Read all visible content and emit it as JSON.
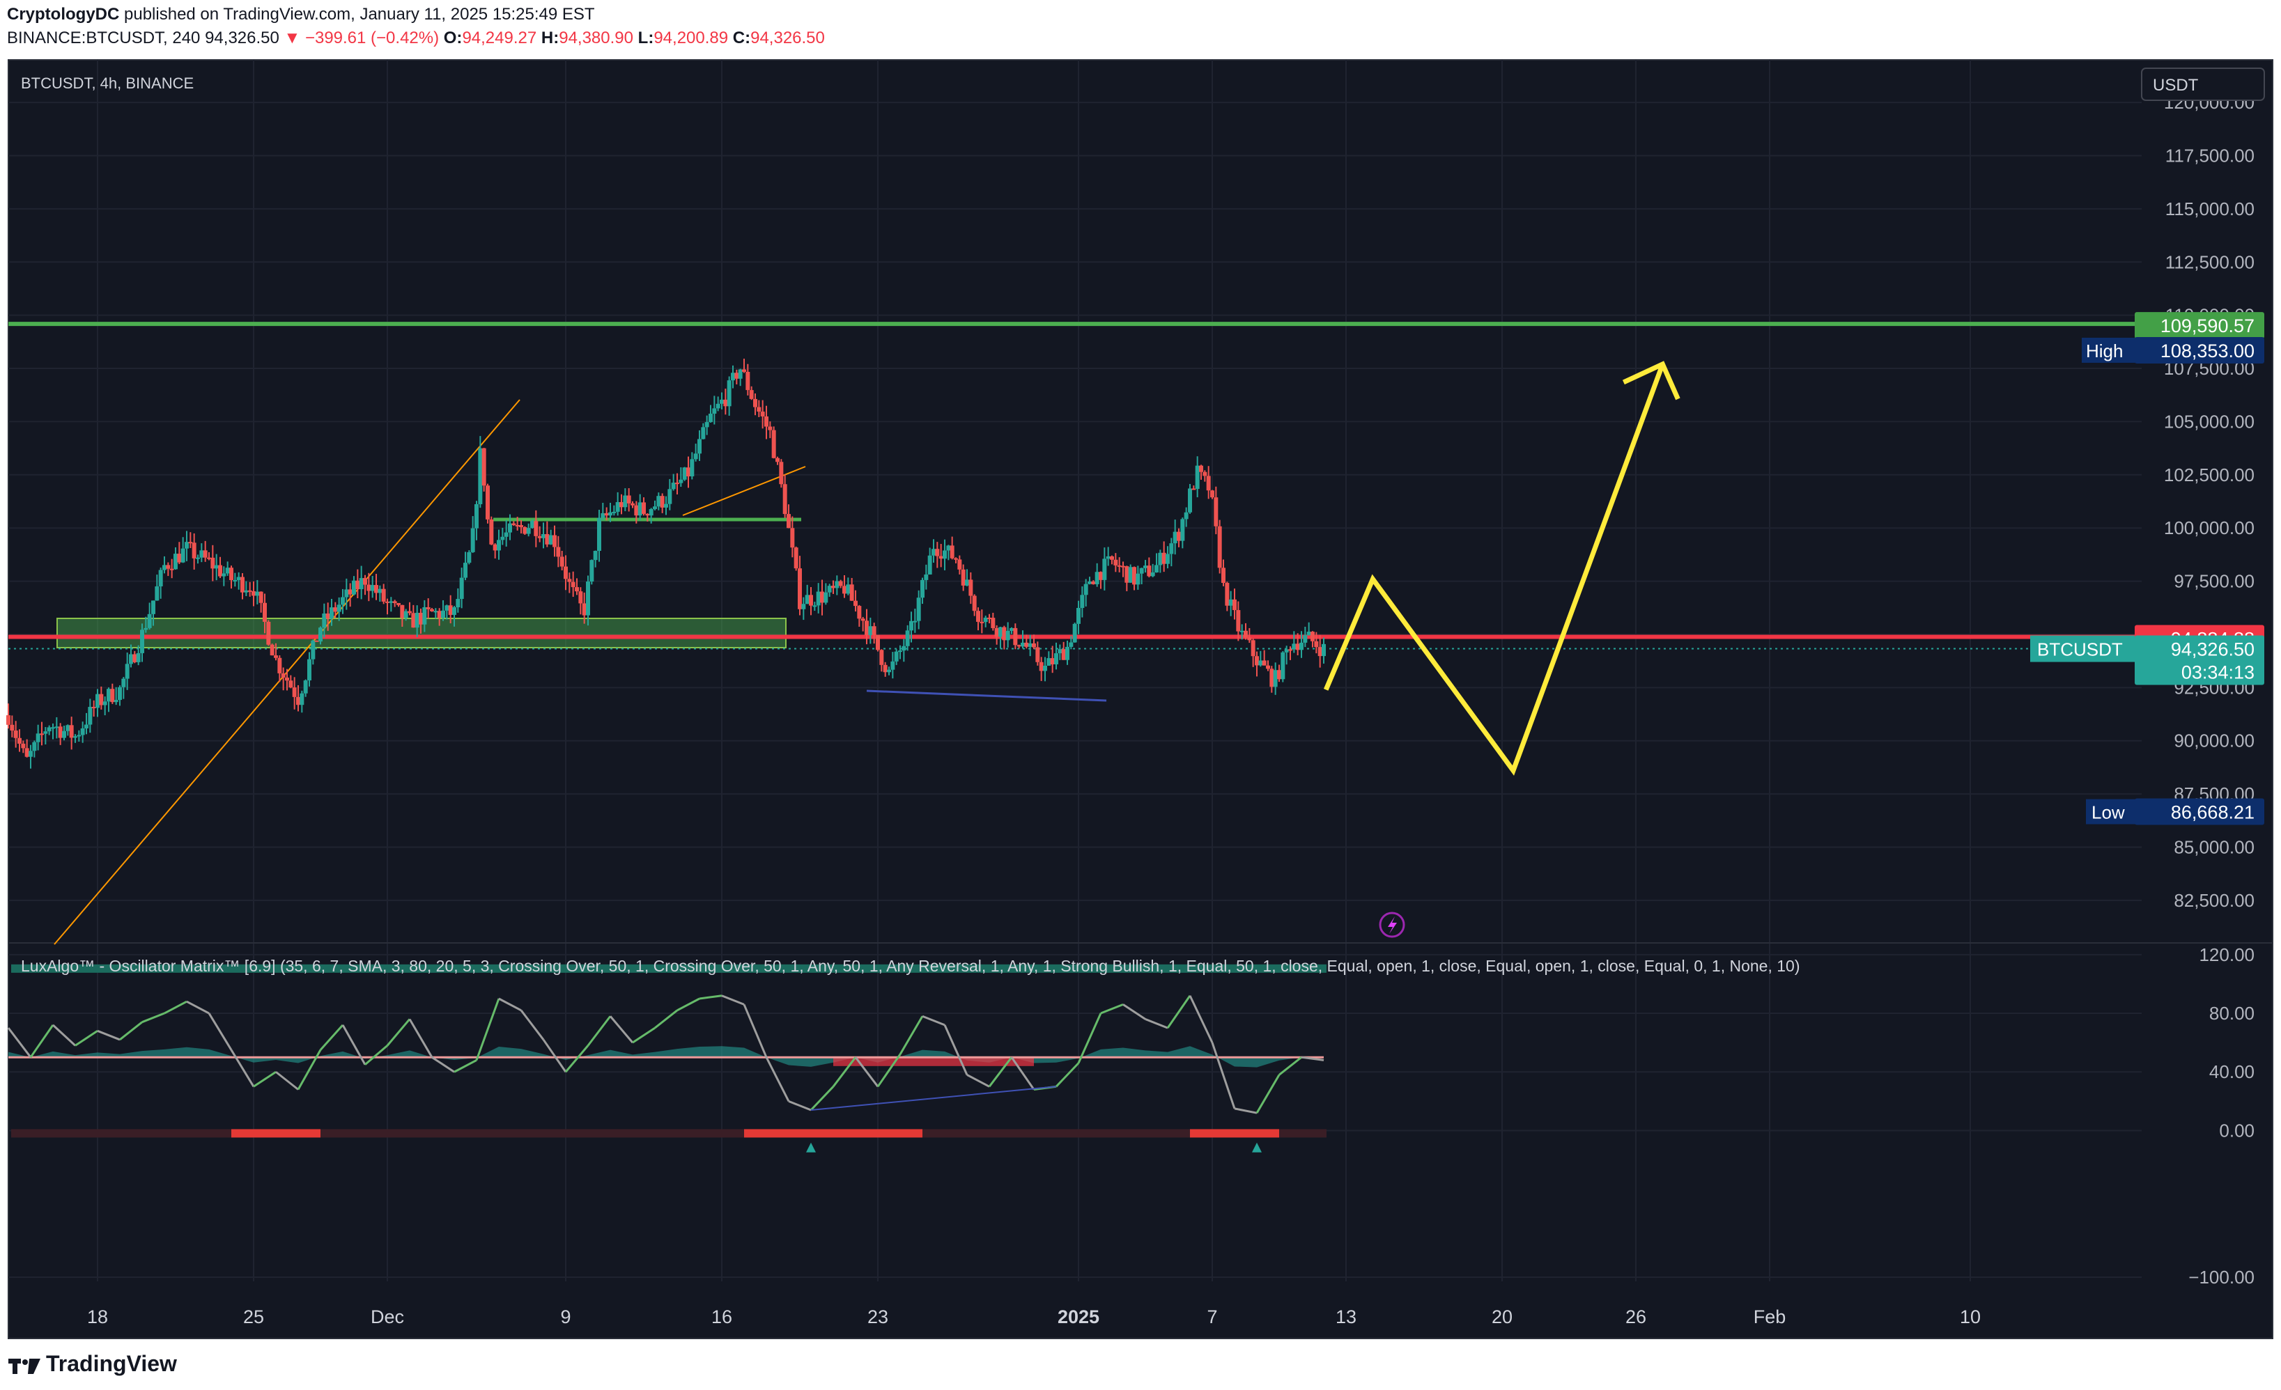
{
  "header": {
    "author": "CryptologyDC",
    "published": "published on TradingView.com, January 11, 2025 15:25:49 EST"
  },
  "ohlc": {
    "symbol": "BINANCE:BTCUSDT, 240",
    "last": "94,326.50",
    "change": "▼ −399.61 (−0.42%)",
    "o_label": "O:",
    "o": "94,249.27",
    "h_label": "H:",
    "h": "94,380.90",
    "l_label": "L:",
    "l": "94,200.89",
    "c_label": "C:",
    "c": "94,326.50"
  },
  "pane_title": "BTCUSDT, 4h, BINANCE",
  "currency": "USDT",
  "indicator_title": "LuxAlgo™ - Oscillator Matrix™ [6.9] (35, 6, 7, SMA, 3, 80, 20, 5, 3, Crossing Over, 50, 1, Crossing Over, 50, 1, Any, 50, 1, Any Reversal, 1, Any, 1, Strong Bullish, 1, Equal, 50, 1, close, Equal, open, 1, close, Equal, open, 1, close, Equal, 0, 1, None, 10)",
  "price_labels": {
    "resistance": "109,590.57",
    "high_label": "High",
    "high": "108,353.00",
    "support": "94,884.88",
    "symbol": "BTCUSDT",
    "last": "94,326.50",
    "countdown": "03:34:13",
    "low_label": "Low",
    "low": "86,668.21"
  },
  "colors": {
    "background": "#131722",
    "up": "#26a69a",
    "down": "#ef5350",
    "resistance": "#4caf50",
    "support": "#f23645",
    "projection": "#ffeb3b",
    "trend": "#ff9800"
  },
  "chart_data": {
    "type": "candlestick",
    "timeframe": "4h",
    "y_ticks": [
      82500,
      85000,
      87500,
      90000,
      92500,
      95000,
      97500,
      100000,
      102500,
      105000,
      107500,
      110000,
      112500,
      115000,
      117500,
      120000
    ],
    "y_tick_labels": [
      "82,500.00",
      "85,000.00",
      "87,500.00",
      "90,000.00",
      "92,500.00",
      "95,000.00",
      "97,500.00",
      "100,000.00",
      "102,500.00",
      "105,000.00",
      "107,500.00",
      "110,000.00",
      "112,500.00",
      "115,000.00",
      "117,500.00",
      "120,000.00"
    ],
    "x_tick_labels": [
      "18",
      "25",
      "Dec",
      "9",
      "16",
      "23",
      "2025",
      "7",
      "13",
      "20",
      "26",
      "Feb",
      "10"
    ],
    "x_tick_days": [
      0,
      7,
      13,
      21,
      28,
      35,
      44,
      50,
      56,
      63,
      69,
      75,
      84
    ],
    "x_range_days": [
      -4,
      90
    ],
    "y_range": [
      80500,
      122000
    ],
    "price_path": [
      [
        -4,
        91200
      ],
      [
        -3.2,
        89000
      ],
      [
        -2.2,
        90800
      ],
      [
        -1,
        90200
      ],
      [
        0,
        91800
      ],
      [
        1,
        92400
      ],
      [
        2,
        95000
      ],
      [
        3,
        98200
      ],
      [
        4,
        99000
      ],
      [
        5,
        98400
      ],
      [
        6,
        97600
      ],
      [
        7,
        97200
      ],
      [
        8,
        93800
      ],
      [
        9,
        92000
      ],
      [
        10,
        95400
      ],
      [
        11,
        96600
      ],
      [
        12,
        97600
      ],
      [
        13,
        96400
      ],
      [
        14,
        95600
      ],
      [
        15,
        96000
      ],
      [
        16,
        96000
      ],
      [
        16.8,
        99200
      ],
      [
        17.2,
        103800
      ],
      [
        17.6,
        99200
      ],
      [
        18.5,
        99800
      ],
      [
        19.5,
        100200
      ],
      [
        20.5,
        99400
      ],
      [
        21.2,
        97200
      ],
      [
        21.8,
        96000
      ],
      [
        22.5,
        100200
      ],
      [
        23.5,
        101200
      ],
      [
        24.5,
        100800
      ],
      [
        25.5,
        101400
      ],
      [
        26.5,
        102600
      ],
      [
        27.5,
        105200
      ],
      [
        28.2,
        106200
      ],
      [
        28.8,
        107600
      ],
      [
        29.5,
        105800
      ],
      [
        30.2,
        104400
      ],
      [
        30.8,
        101200
      ],
      [
        31.5,
        96600
      ],
      [
        32.5,
        96800
      ],
      [
        33.5,
        97200
      ],
      [
        34.5,
        95400
      ],
      [
        35.5,
        93200
      ],
      [
        36.5,
        95200
      ],
      [
        37.5,
        99200
      ],
      [
        38.5,
        98600
      ],
      [
        39.5,
        96000
      ],
      [
        40.5,
        95200
      ],
      [
        41.5,
        94600
      ],
      [
        42.5,
        93400
      ],
      [
        43.5,
        94400
      ],
      [
        44.5,
        97600
      ],
      [
        45.5,
        98400
      ],
      [
        46.5,
        97600
      ],
      [
        47.5,
        98200
      ],
      [
        48.5,
        99800
      ],
      [
        49.3,
        102600
      ],
      [
        49.9,
        101800
      ],
      [
        50.5,
        97200
      ],
      [
        51.2,
        95200
      ],
      [
        52,
        93800
      ],
      [
        52.8,
        92800
      ],
      [
        53.5,
        94600
      ],
      [
        54.3,
        94800
      ],
      [
        55,
        94300
      ]
    ],
    "levels": {
      "resistance": 109590.57,
      "high": 108353.0,
      "support": 94884.88,
      "last": 94326.5,
      "low": 86668.21
    },
    "projection": [
      [
        55.1,
        92400
      ],
      [
        57.2,
        97600
      ],
      [
        63.5,
        88600
      ],
      [
        70.2,
        107700
      ]
    ],
    "oscillator": {
      "y_ticks": [
        -100,
        0,
        40,
        80,
        120
      ],
      "y_tick_labels": [
        "−100.00",
        "0.00",
        "40.00",
        "80.00",
        "120.00"
      ],
      "y_range": [
        -110,
        128
      ],
      "path": [
        [
          -4,
          70
        ],
        [
          -3,
          50
        ],
        [
          -2,
          72
        ],
        [
          -1,
          58
        ],
        [
          0,
          68
        ],
        [
          1,
          62
        ],
        [
          2,
          74
        ],
        [
          3,
          80
        ],
        [
          4,
          88
        ],
        [
          5,
          80
        ],
        [
          6,
          55
        ],
        [
          7,
          30
        ],
        [
          8,
          40
        ],
        [
          9,
          28
        ],
        [
          10,
          55
        ],
        [
          11,
          72
        ],
        [
          12,
          45
        ],
        [
          13,
          58
        ],
        [
          14,
          76
        ],
        [
          15,
          50
        ],
        [
          16,
          40
        ],
        [
          17,
          48
        ],
        [
          18,
          90
        ],
        [
          19,
          82
        ],
        [
          20,
          62
        ],
        [
          21,
          40
        ],
        [
          22,
          58
        ],
        [
          23,
          78
        ],
        [
          24,
          60
        ],
        [
          25,
          70
        ],
        [
          26,
          82
        ],
        [
          27,
          90
        ],
        [
          28,
          92
        ],
        [
          29,
          86
        ],
        [
          30,
          50
        ],
        [
          31,
          20
        ],
        [
          32,
          14
        ],
        [
          33,
          30
        ],
        [
          34,
          50
        ],
        [
          35,
          30
        ],
        [
          36,
          52
        ],
        [
          37,
          78
        ],
        [
          38,
          72
        ],
        [
          39,
          38
        ],
        [
          40,
          30
        ],
        [
          41,
          50
        ],
        [
          42,
          28
        ],
        [
          43,
          30
        ],
        [
          44,
          46
        ],
        [
          45,
          80
        ],
        [
          46,
          86
        ],
        [
          47,
          76
        ],
        [
          48,
          70
        ],
        [
          49,
          92
        ],
        [
          50,
          60
        ],
        [
          51,
          15
        ],
        [
          52,
          12
        ],
        [
          53,
          38
        ],
        [
          54,
          50
        ],
        [
          55,
          48
        ]
      ]
    }
  }
}
